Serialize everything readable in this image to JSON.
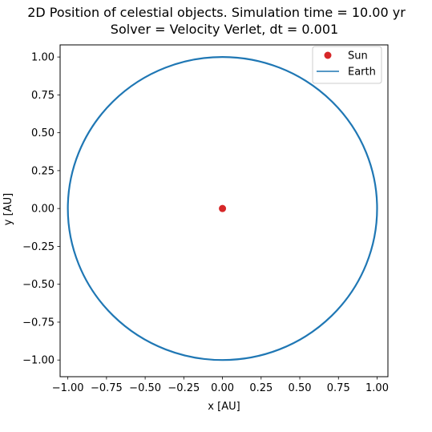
{
  "chart_data": {
    "type": "scatter",
    "title": "2D Position of celestial objects. Simulation time = 10.00 yr",
    "subtitle": "Solver = Velocity Verlet,  dt = 0.001",
    "xlabel": "x [AU]",
    "ylabel": "y [AU]",
    "xlim": [
      -1.05,
      1.07
    ],
    "ylim": [
      -1.11,
      1.08
    ],
    "xticks": [
      -1.0,
      -0.75,
      -0.5,
      -0.25,
      0.0,
      0.25,
      0.5,
      0.75,
      1.0
    ],
    "xtick_labels": [
      "−1.00",
      "−0.75",
      "−0.50",
      "−0.25",
      "0.00",
      "0.25",
      "0.50",
      "0.75",
      "1.00"
    ],
    "yticks": [
      1.0,
      0.75,
      0.5,
      0.25,
      0.0,
      -0.25,
      -0.5,
      -0.75,
      -1.0
    ],
    "ytick_labels": [
      "1.00",
      "0.75",
      "0.50",
      "0.25",
      "0.00",
      "−0.25",
      "−0.50",
      "−0.75",
      "−1.00"
    ],
    "grid": false,
    "legend_position": "top-right",
    "series": [
      {
        "name": "Sun",
        "kind": "point",
        "x": [
          0.0
        ],
        "y": [
          0.0
        ],
        "color": "#d62728"
      },
      {
        "name": "Earth",
        "kind": "orbit",
        "center": [
          0.0,
          0.0
        ],
        "radius": 1.0,
        "color": "#1f77b4"
      }
    ]
  }
}
